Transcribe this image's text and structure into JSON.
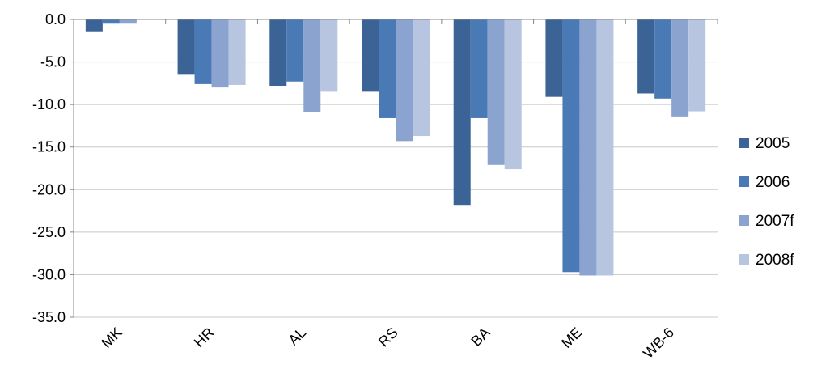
{
  "chart_data": {
    "type": "bar",
    "title": "",
    "xlabel": "",
    "ylabel": "",
    "categories": [
      "MK",
      "HR",
      "AL",
      "RS",
      "BA",
      "ME",
      "WB-6"
    ],
    "series": [
      {
        "name": "2005",
        "color": "#3b6396",
        "values": [
          -1.4,
          -6.5,
          -7.8,
          -8.5,
          -21.8,
          -9.1,
          -8.7
        ]
      },
      {
        "name": "2006",
        "color": "#4a7ab6",
        "values": [
          -0.5,
          -7.6,
          -7.3,
          -11.6,
          -11.6,
          -29.7,
          -9.3
        ]
      },
      {
        "name": "2007f",
        "color": "#8aa4cf",
        "values": [
          -0.5,
          -8.0,
          -10.9,
          -14.3,
          -17.1,
          -30.1,
          -11.4
        ]
      },
      {
        "name": "2008f",
        "color": "#b7c5e1",
        "values": [
          0.0,
          -7.7,
          -8.5,
          -13.7,
          -17.6,
          -30.1,
          -10.8
        ]
      }
    ],
    "ylim": [
      -35.0,
      0.0
    ],
    "yticks": [
      "0.0",
      "-5.0",
      "-10.0",
      "-15.0",
      "-20.0",
      "-25.0",
      "-30.0",
      "-35.0"
    ],
    "grid": true,
    "legend_position": "right"
  }
}
